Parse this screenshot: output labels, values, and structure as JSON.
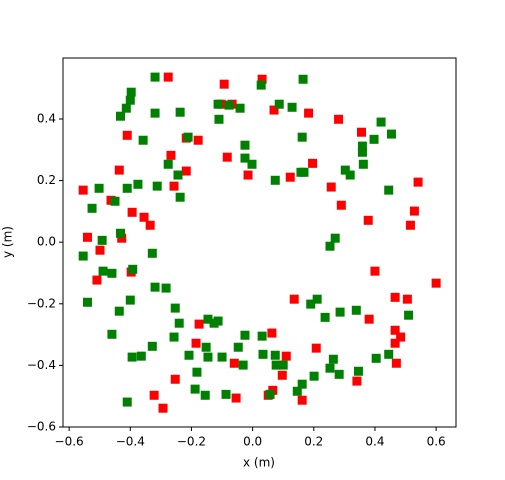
{
  "chart_data": {
    "type": "scatter",
    "xlabel": "x (m)",
    "ylabel": "y (m)",
    "xlim": [
      -0.62,
      0.665
    ],
    "ylim": [
      -0.6,
      0.598
    ],
    "xticks": [
      {
        "value": -0.6,
        "label": "−0.6"
      },
      {
        "value": -0.4,
        "label": "−0.4"
      },
      {
        "value": -0.2,
        "label": "−0.2"
      },
      {
        "value": 0,
        "label": "0.0"
      },
      0.2,
      0.4,
      0.6
    ],
    "yticks": [
      {
        "value": -0.6,
        "label": "−0.6"
      },
      {
        "value": -0.4,
        "label": "−0.4"
      },
      {
        "value": -0.2,
        "label": "−0.2"
      },
      {
        "value": 0,
        "label": "0.0"
      },
      0.2,
      0.4
    ],
    "series": [
      {
        "color": "#ff0000",
        "x": [
          -0.276,
          -0.093,
          0.031,
          -0.103,
          -0.067,
          0.07,
          0.183,
          0.281,
          0.356,
          -0.41,
          -0.217,
          -0.178,
          -0.267,
          -0.083,
          0.196,
          -0.217,
          -0.015,
          0.123,
          0.257,
          -0.436,
          -0.257,
          -0.554,
          -0.463,
          0.541,
          -0.394,
          0.29,
          0.529,
          -0.355,
          -0.335,
          0.378,
          0.516,
          -0.54,
          -0.428,
          -0.499,
          -0.397,
          0.4,
          -0.509,
          0.6,
          0.466,
          0.506,
          0.136,
          -0.175,
          0.381,
          0.466,
          0.063,
          0.484,
          0.466,
          -0.185,
          0.208,
          0.11,
          -0.06,
          0.47,
          0.097,
          -0.253,
          0.341,
          0.066,
          0.051,
          -0.322,
          -0.054,
          0.162,
          -0.293
        ],
        "values": [
          0.536,
          0.513,
          0.529,
          0.448,
          0.448,
          0.429,
          0.419,
          0.399,
          0.357,
          0.347,
          0.338,
          0.331,
          0.282,
          0.276,
          0.256,
          0.231,
          0.218,
          0.211,
          0.179,
          0.234,
          0.182,
          0.169,
          0.136,
          0.195,
          0.097,
          0.12,
          0.101,
          0.081,
          0.055,
          0.071,
          0.055,
          0.016,
          0.013,
          -0.026,
          -0.097,
          -0.094,
          -0.123,
          -0.133,
          -0.179,
          -0.185,
          -0.185,
          -0.266,
          -0.25,
          -0.286,
          -0.295,
          -0.308,
          -0.328,
          -0.328,
          -0.344,
          -0.37,
          -0.393,
          -0.393,
          -0.432,
          -0.445,
          -0.451,
          -0.481,
          -0.497,
          -0.497,
          -0.506,
          -0.513,
          -0.539
        ]
      },
      {
        "color": "#008000",
        "x": [
          -0.319,
          -0.397,
          0.165,
          0.028,
          -0.077,
          -0.041,
          0.087,
          0.129,
          -0.113,
          -0.4,
          -0.413,
          -0.432,
          -0.319,
          -0.237,
          -0.11,
          0.42,
          0.454,
          0.397,
          0.162,
          -0.211,
          -0.358,
          -0.025,
          0.359,
          0.359,
          -0.276,
          -0.025,
          -0.002,
          0.362,
          0.168,
          0.158,
          0.303,
          0.319,
          -0.244,
          0.074,
          -0.502,
          -0.375,
          -0.41,
          -0.312,
          -0.237,
          0.445,
          -0.45,
          -0.525,
          -0.432,
          -0.492,
          0.27,
          0.253,
          -0.328,
          -0.554,
          -0.489,
          -0.46,
          -0.392,
          -0.319,
          -0.283,
          -0.54,
          -0.4,
          0.211,
          0.19,
          -0.436,
          -0.253,
          0.286,
          0.339,
          0.51,
          0.237,
          -0.24,
          -0.146,
          -0.126,
          -0.113,
          -0.46,
          -0.025,
          0.031,
          -0.257,
          -0.328,
          -0.152,
          -0.047,
          -0.364,
          -0.394,
          -0.208,
          -0.146,
          -0.1,
          0.034,
          0.074,
          0.445,
          0.404,
          0.264,
          0.077,
          0.1,
          -0.031,
          -0.182,
          0.253,
          0.283,
          0.346,
          0.201,
          0.162,
          0.146,
          -0.188,
          -0.155,
          -0.087,
          0.057,
          -0.41
        ],
        "values": [
          0.536,
          0.487,
          0.529,
          0.51,
          0.445,
          0.435,
          0.448,
          0.438,
          0.448,
          0.461,
          0.435,
          0.409,
          0.419,
          0.422,
          0.399,
          0.39,
          0.351,
          0.334,
          0.341,
          0.341,
          0.331,
          0.315,
          0.312,
          0.292,
          0.253,
          0.273,
          0.253,
          0.253,
          0.227,
          0.227,
          0.234,
          0.218,
          0.218,
          0.201,
          0.175,
          0.188,
          0.175,
          0.182,
          0.146,
          0.169,
          0.133,
          0.11,
          0.029,
          0.006,
          0.013,
          -0.013,
          -0.036,
          -0.045,
          -0.094,
          -0.101,
          -0.088,
          -0.146,
          -0.149,
          -0.195,
          -0.188,
          -0.185,
          -0.201,
          -0.224,
          -0.214,
          -0.227,
          -0.221,
          -0.237,
          -0.244,
          -0.263,
          -0.25,
          -0.263,
          -0.256,
          -0.299,
          -0.302,
          -0.305,
          -0.308,
          -0.338,
          -0.341,
          -0.341,
          -0.37,
          -0.373,
          -0.367,
          -0.373,
          -0.373,
          -0.364,
          -0.367,
          -0.364,
          -0.377,
          -0.38,
          -0.399,
          -0.399,
          -0.399,
          -0.422,
          -0.409,
          -0.429,
          -0.419,
          -0.435,
          -0.461,
          -0.484,
          -0.477,
          -0.497,
          -0.494,
          -0.494,
          -0.519
        ]
      }
    ]
  }
}
